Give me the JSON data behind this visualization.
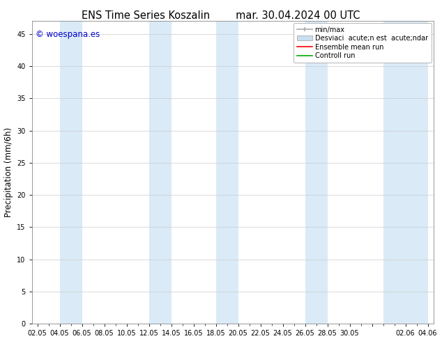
{
  "title_left": "ENS Time Series Koszalin",
  "title_right": "mar. 30.04.2024 00 UTC",
  "ylabel": "Precipitation (mm/6h)",
  "ylim": [
    0,
    47
  ],
  "yticks": [
    0,
    5,
    10,
    15,
    20,
    25,
    30,
    35,
    40,
    45
  ],
  "xtick_labels": [
    "02.05",
    "04.05",
    "06.05",
    "08.05",
    "10.05",
    "12.05",
    "14.05",
    "16.05",
    "18.05",
    "20.05",
    "22.05",
    "24.05",
    "26.05",
    "28.05",
    "30.05",
    "",
    "02.06",
    "04.06"
  ],
  "xtick_positions": [
    0,
    2,
    4,
    6,
    8,
    10,
    12,
    14,
    16,
    18,
    20,
    22,
    24,
    26,
    28,
    30,
    33,
    35
  ],
  "xlim": [
    -0.5,
    35.5
  ],
  "band_pairs": [
    [
      2,
      4
    ],
    [
      10,
      12
    ],
    [
      16,
      18
    ],
    [
      24,
      26
    ],
    [
      31,
      35
    ]
  ],
  "band_color": "#daeaf7",
  "band_alpha": 1.0,
  "watermark": "© woespana.es",
  "watermark_color": "#0000cc",
  "legend_entry_minmax": "min/max",
  "legend_entry_desv": "Desviaci  acute;n est  acute;ndar",
  "legend_entry_ens": "Ensemble mean run",
  "legend_entry_ctrl": "Controll run",
  "legend_minmax_color": "#aaaaaa",
  "legend_desv_color": "#c8dff0",
  "legend_ens_color": "#ff0000",
  "legend_ctrl_color": "#00aa00",
  "bg_color": "#ffffff",
  "plot_bg_color": "#ffffff",
  "spine_color": "#888888",
  "grid_color": "#cccccc",
  "tick_label_fontsize": 7,
  "title_fontsize": 10.5,
  "ylabel_fontsize": 8.5,
  "watermark_fontsize": 8.5,
  "legend_fontsize": 7
}
